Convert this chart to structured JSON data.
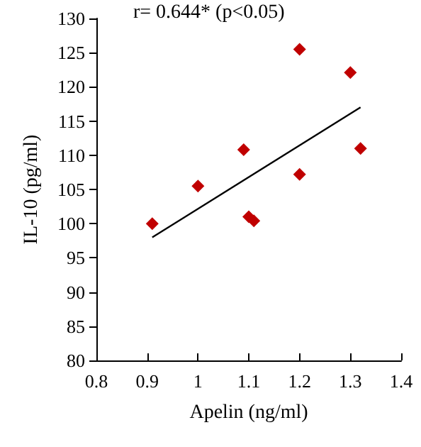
{
  "chart_data": {
    "type": "scatter",
    "xlabel": "Apelin (ng/ml)",
    "ylabel": "IL-10 (pg/ml)",
    "annotations": [
      "r= 0.644* (p<0.05)"
    ],
    "xlim": [
      0.8,
      1.4
    ],
    "xticks": [
      0.8,
      0.9,
      1,
      1.1,
      1.2,
      1.3,
      1.4
    ],
    "ylim": [
      80,
      130
    ],
    "yticks": [
      80,
      85,
      90,
      95,
      100,
      105,
      110,
      115,
      120,
      125,
      130
    ],
    "grid": false,
    "marker": "diamond",
    "series": [
      {
        "color": "#c00000",
        "x": [
          0.91,
          1.0,
          1.09,
          1.1,
          1.11,
          1.2,
          1.2,
          1.3,
          1.32
        ],
        "values": [
          100,
          105.5,
          110.8,
          101,
          100.4,
          125.5,
          107.2,
          122.1,
          111
        ]
      },
      {
        "type": "line",
        "color": "#000000",
        "marker": "none",
        "x": [
          0.91,
          1.32
        ],
        "values": [
          98,
          117
        ]
      }
    ]
  }
}
